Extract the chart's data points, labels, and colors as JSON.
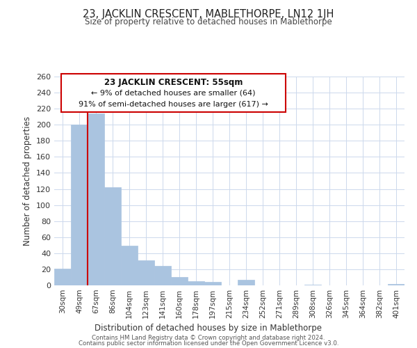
{
  "title": "23, JACKLIN CRESCENT, MABLETHORPE, LN12 1JH",
  "subtitle": "Size of property relative to detached houses in Mablethorpe",
  "xlabel": "Distribution of detached houses by size in Mablethorpe",
  "ylabel": "Number of detached properties",
  "bar_labels": [
    "30sqm",
    "49sqm",
    "67sqm",
    "86sqm",
    "104sqm",
    "123sqm",
    "141sqm",
    "160sqm",
    "178sqm",
    "197sqm",
    "215sqm",
    "234sqm",
    "252sqm",
    "271sqm",
    "289sqm",
    "308sqm",
    "326sqm",
    "345sqm",
    "364sqm",
    "382sqm",
    "401sqm"
  ],
  "bar_values": [
    21,
    200,
    214,
    122,
    49,
    31,
    24,
    10,
    5,
    4,
    0,
    7,
    0,
    0,
    0,
    1,
    0,
    0,
    0,
    0,
    2
  ],
  "bar_color": "#aac4e0",
  "bar_edge_color": "#aac4e0",
  "highlight_line_color": "#cc0000",
  "ylim": [
    0,
    260
  ],
  "yticks": [
    0,
    20,
    40,
    60,
    80,
    100,
    120,
    140,
    160,
    180,
    200,
    220,
    240,
    260
  ],
  "annotation_title": "23 JACKLIN CRESCENT: 55sqm",
  "annotation_line1": "← 9% of detached houses are smaller (64)",
  "annotation_line2": "91% of semi-detached houses are larger (617) →",
  "annotation_box_color": "#ffffff",
  "annotation_box_edge": "#cc0000",
  "footer_line1": "Contains HM Land Registry data © Crown copyright and database right 2024.",
  "footer_line2": "Contains public sector information licensed under the Open Government Licence v3.0.",
  "bg_color": "#ffffff",
  "grid_color": "#ccd8ec"
}
